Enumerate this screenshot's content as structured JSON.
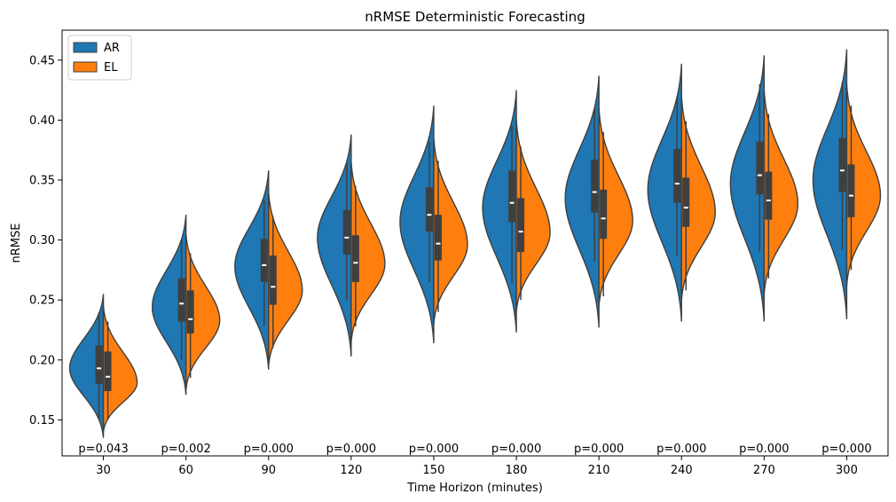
{
  "chart_data": {
    "type": "violin",
    "title": "nRMSE Deterministic Forecasting",
    "xlabel": "Time Horizon (minutes)",
    "ylabel": "nRMSE",
    "categories": [
      "30",
      "60",
      "90",
      "120",
      "150",
      "180",
      "210",
      "240",
      "270",
      "300"
    ],
    "ylim": [
      0.12,
      0.475
    ],
    "yticks": [
      0.15,
      0.2,
      0.25,
      0.3,
      0.35,
      0.4,
      0.45
    ],
    "ytick_labels": [
      "0.15",
      "0.20",
      "0.25",
      "0.30",
      "0.35",
      "0.40",
      "0.45"
    ],
    "legend": {
      "placement": "top-left",
      "entries": [
        "AR",
        "EL"
      ]
    },
    "annotations": [
      "p=0.043",
      "p=0.002",
      "p=0.000",
      "p=0.000",
      "p=0.000",
      "p=0.000",
      "p=0.000",
      "p=0.000",
      "p=0.000",
      "p=0.000"
    ],
    "series": [
      {
        "name": "AR",
        "color": "#1f77b4",
        "median": [
          0.193,
          0.247,
          0.279,
          0.302,
          0.321,
          0.331,
          0.34,
          0.347,
          0.354,
          0.358
        ],
        "q1": [
          0.18,
          0.232,
          0.265,
          0.288,
          0.307,
          0.315,
          0.323,
          0.331,
          0.338,
          0.34
        ],
        "q3": [
          0.212,
          0.268,
          0.301,
          0.325,
          0.344,
          0.358,
          0.367,
          0.376,
          0.382,
          0.385
        ],
        "whisker_low": [
          0.15,
          0.2,
          0.228,
          0.25,
          0.265,
          0.264,
          0.282,
          0.287,
          0.29,
          0.292
        ],
        "whisker_high": [
          0.24,
          0.3,
          0.333,
          0.364,
          0.382,
          0.395,
          0.41,
          0.42,
          0.43,
          0.432
        ],
        "min": [
          0.135,
          0.171,
          0.192,
          0.203,
          0.214,
          0.223,
          0.227,
          0.232,
          0.232,
          0.234
        ],
        "max": [
          0.255,
          0.321,
          0.358,
          0.388,
          0.412,
          0.425,
          0.437,
          0.447,
          0.454,
          0.459
        ],
        "mode": [
          0.193,
          0.244,
          0.278,
          0.302,
          0.315,
          0.327,
          0.335,
          0.342,
          0.347,
          0.35
        ]
      },
      {
        "name": "EL",
        "color": "#ff7f0e",
        "median": [
          0.186,
          0.234,
          0.261,
          0.281,
          0.297,
          0.307,
          0.318,
          0.327,
          0.333,
          0.337
        ],
        "q1": [
          0.174,
          0.222,
          0.246,
          0.265,
          0.283,
          0.29,
          0.301,
          0.311,
          0.317,
          0.319
        ],
        "q3": [
          0.207,
          0.258,
          0.287,
          0.304,
          0.321,
          0.335,
          0.342,
          0.352,
          0.357,
          0.363
        ],
        "whisker_low": [
          0.15,
          0.185,
          0.21,
          0.228,
          0.24,
          0.25,
          0.253,
          0.258,
          0.268,
          0.275
        ],
        "whisker_high": [
          0.232,
          0.289,
          0.32,
          0.345,
          0.366,
          0.378,
          0.39,
          0.399,
          0.405,
          0.412
        ],
        "min": [
          0.14,
          0.175,
          0.195,
          0.215,
          0.23,
          0.24,
          0.245,
          0.25,
          0.255,
          0.262
        ],
        "max": [
          0.245,
          0.305,
          0.34,
          0.365,
          0.385,
          0.4,
          0.41,
          0.42,
          0.425,
          0.43
        ],
        "mode": [
          0.181,
          0.233,
          0.258,
          0.28,
          0.296,
          0.306,
          0.316,
          0.323,
          0.33,
          0.337
        ]
      }
    ]
  }
}
